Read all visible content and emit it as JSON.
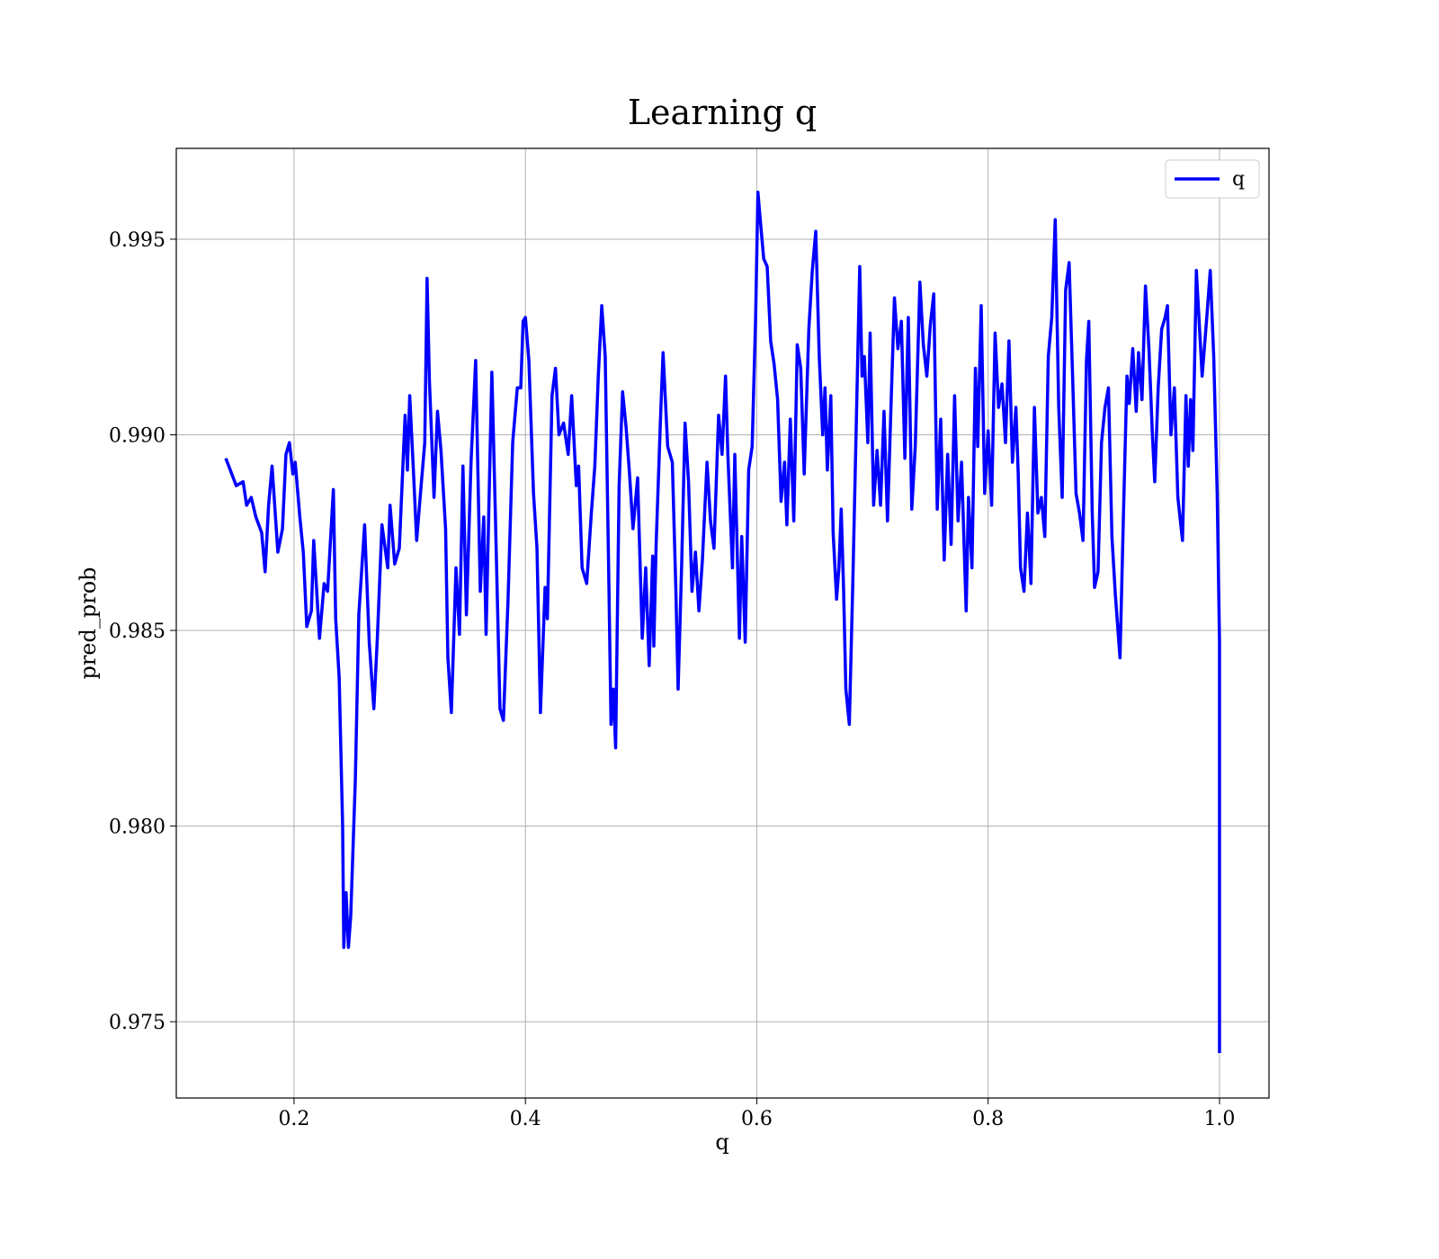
{
  "chart_data": {
    "type": "line",
    "title": "Learning q",
    "x_label": "q",
    "y_label": "pred_prob",
    "xlim": [
      0.0982,
      1.0428
    ],
    "ylim": [
      0.97305,
      0.99732
    ],
    "xticks": [
      0.2,
      0.4,
      0.6,
      0.8,
      {
        "value": 1,
        "label": "1.0"
      }
    ],
    "yticks": [
      0.975,
      {
        "value": 0.98,
        "label": "0.980"
      },
      0.985,
      {
        "value": 0.99,
        "label": "0.990"
      },
      0.995
    ],
    "grid": true,
    "legend": "upper right",
    "x": [
      0.141,
      0.15,
      0.156,
      0.159,
      0.163,
      0.167,
      0.172,
      0.175,
      0.178,
      0.181,
      0.186,
      0.19,
      0.193,
      0.196,
      0.199,
      0.201,
      0.205,
      0.208,
      0.211,
      0.215,
      0.217,
      0.222,
      0.226,
      0.229,
      0.234,
      0.236,
      0.239,
      0.242,
      0.243,
      0.245,
      0.247,
      0.249,
      0.253,
      0.256,
      0.261,
      0.265,
      0.269,
      0.272,
      0.276,
      0.281,
      0.283,
      0.287,
      0.291,
      0.296,
      0.298,
      0.3,
      0.303,
      0.306,
      0.309,
      0.313,
      0.315,
      0.317,
      0.321,
      0.324,
      0.327,
      0.331,
      0.333,
      0.336,
      0.34,
      0.343,
      0.346,
      0.349,
      0.353,
      0.357,
      0.361,
      0.364,
      0.366,
      0.371,
      0.374,
      0.378,
      0.381,
      0.385,
      0.389,
      0.393,
      0.396,
      0.398,
      0.4,
      0.403,
      0.407,
      0.41,
      0.413,
      0.417,
      0.419,
      0.423,
      0.426,
      0.429,
      0.433,
      0.437,
      0.44,
      0.444,
      0.446,
      0.449,
      0.453,
      0.457,
      0.46,
      0.463,
      0.466,
      0.469,
      0.472,
      0.474,
      0.476,
      0.478,
      0.481,
      0.484,
      0.487,
      0.49,
      0.493,
      0.497,
      0.501,
      0.504,
      0.507,
      0.51,
      0.511,
      0.513,
      0.517,
      0.519,
      0.523,
      0.527,
      0.53,
      0.532,
      0.535,
      0.538,
      0.541,
      0.544,
      0.547,
      0.55,
      0.553,
      0.557,
      0.56,
      0.563,
      0.567,
      0.57,
      0.573,
      0.575,
      0.579,
      0.581,
      0.585,
      0.587,
      0.59,
      0.593,
      0.596,
      0.599,
      0.601,
      0.603,
      0.606,
      0.609,
      0.612,
      0.615,
      0.618,
      0.621,
      0.624,
      0.626,
      0.629,
      0.632,
      0.635,
      0.638,
      0.641,
      0.645,
      0.648,
      0.651,
      0.654,
      0.657,
      0.659,
      0.661,
      0.664,
      0.666,
      0.669,
      0.671,
      0.673,
      0.675,
      0.677,
      0.68,
      0.683,
      0.689,
      0.691,
      0.693,
      0.696,
      0.698,
      0.701,
      0.704,
      0.707,
      0.71,
      0.713,
      0.716,
      0.719,
      0.722,
      0.725,
      0.728,
      0.731,
      0.734,
      0.737,
      0.741,
      0.744,
      0.747,
      0.75,
      0.753,
      0.756,
      0.759,
      0.762,
      0.765,
      0.768,
      0.771,
      0.774,
      0.777,
      0.781,
      0.783,
      0.786,
      0.789,
      0.791,
      0.794,
      0.797,
      0.8,
      0.803,
      0.806,
      0.809,
      0.812,
      0.815,
      0.818,
      0.821,
      0.824,
      0.826,
      0.828,
      0.831,
      0.834,
      0.837,
      0.84,
      0.843,
      0.846,
      0.849,
      0.852,
      0.855,
      0.858,
      0.861,
      0.864,
      0.867,
      0.87,
      0.873,
      0.876,
      0.879,
      0.882,
      0.885,
      0.887,
      0.89,
      0.892,
      0.895,
      0.898,
      0.901,
      0.904,
      0.907,
      0.91,
      0.914,
      0.917,
      0.92,
      0.922,
      0.925,
      0.928,
      0.93,
      0.933,
      0.936,
      0.939,
      0.942,
      0.944,
      0.947,
      0.95,
      0.953,
      0.955,
      0.958,
      0.961,
      0.964,
      0.968,
      0.971,
      0.973,
      0.975,
      0.977,
      0.98,
      0.985,
      0.989,
      0.992,
      0.995,
      0.998,
      1.0,
      1.0
    ],
    "series": [
      {
        "name": "q",
        "color": "#0000ff",
        "values": [
          0.9894,
          0.9887,
          0.9888,
          0.9882,
          0.9884,
          0.9879,
          0.9875,
          0.9865,
          0.9882,
          0.9892,
          0.987,
          0.9876,
          0.9895,
          0.9898,
          0.989,
          0.9893,
          0.9879,
          0.987,
          0.9851,
          0.9855,
          0.9873,
          0.9848,
          0.9862,
          0.986,
          0.9886,
          0.9853,
          0.9838,
          0.98,
          0.9769,
          0.9783,
          0.9769,
          0.9777,
          0.9812,
          0.9854,
          0.9877,
          0.9847,
          0.983,
          0.9848,
          0.9877,
          0.9866,
          0.9882,
          0.9867,
          0.9871,
          0.9905,
          0.9891,
          0.991,
          0.9892,
          0.9873,
          0.9884,
          0.9898,
          0.994,
          0.9914,
          0.9884,
          0.9906,
          0.9896,
          0.9876,
          0.9843,
          0.9829,
          0.9866,
          0.9849,
          0.9892,
          0.9854,
          0.9893,
          0.9919,
          0.986,
          0.9879,
          0.9849,
          0.9916,
          0.988,
          0.983,
          0.9827,
          0.9858,
          0.9898,
          0.9912,
          0.9912,
          0.9929,
          0.993,
          0.9919,
          0.9885,
          0.9871,
          0.9829,
          0.9861,
          0.9853,
          0.991,
          0.9917,
          0.99,
          0.9903,
          0.9895,
          0.991,
          0.9887,
          0.9892,
          0.9866,
          0.9862,
          0.988,
          0.9892,
          0.9915,
          0.9933,
          0.992,
          0.9865,
          0.9826,
          0.9835,
          0.982,
          0.9887,
          0.9911,
          0.9902,
          0.989,
          0.9876,
          0.9889,
          0.9848,
          0.9866,
          0.9841,
          0.9869,
          0.9846,
          0.9872,
          0.9906,
          0.9921,
          0.9897,
          0.9893,
          0.9861,
          0.9835,
          0.9866,
          0.9903,
          0.9888,
          0.986,
          0.987,
          0.9855,
          0.9868,
          0.9893,
          0.9878,
          0.9871,
          0.9905,
          0.9895,
          0.9915,
          0.9895,
          0.9866,
          0.9895,
          0.9848,
          0.9874,
          0.9847,
          0.9891,
          0.9897,
          0.993,
          0.9962,
          0.9955,
          0.9945,
          0.9943,
          0.9924,
          0.9918,
          0.9909,
          0.9883,
          0.9893,
          0.9877,
          0.9904,
          0.9878,
          0.9923,
          0.9917,
          0.989,
          0.9927,
          0.9942,
          0.9952,
          0.992,
          0.99,
          0.9912,
          0.9891,
          0.991,
          0.9875,
          0.9858,
          0.9866,
          0.9881,
          0.9861,
          0.9835,
          0.9826,
          0.9862,
          0.9943,
          0.9915,
          0.992,
          0.9898,
          0.9926,
          0.9882,
          0.9896,
          0.9882,
          0.9906,
          0.9878,
          0.9907,
          0.9935,
          0.9922,
          0.9929,
          0.9894,
          0.993,
          0.9881,
          0.9897,
          0.9939,
          0.9923,
          0.9915,
          0.9928,
          0.9936,
          0.9881,
          0.9904,
          0.9868,
          0.9895,
          0.9872,
          0.991,
          0.9878,
          0.9893,
          0.9855,
          0.9884,
          0.9866,
          0.9917,
          0.9897,
          0.9933,
          0.9885,
          0.9901,
          0.9882,
          0.9926,
          0.9907,
          0.9913,
          0.9898,
          0.9924,
          0.9893,
          0.9907,
          0.989,
          0.9866,
          0.986,
          0.988,
          0.9862,
          0.9907,
          0.988,
          0.9884,
          0.9874,
          0.992,
          0.993,
          0.9955,
          0.9907,
          0.9884,
          0.9937,
          0.9944,
          0.9915,
          0.9885,
          0.988,
          0.9873,
          0.9919,
          0.9929,
          0.988,
          0.9861,
          0.9865,
          0.9898,
          0.9907,
          0.9912,
          0.9874,
          0.9859,
          0.9843,
          0.988,
          0.9915,
          0.9908,
          0.9922,
          0.9906,
          0.9921,
          0.9909,
          0.9938,
          0.9922,
          0.99,
          0.9888,
          0.9912,
          0.9927,
          0.993,
          0.9933,
          0.99,
          0.9912,
          0.9884,
          0.9873,
          0.991,
          0.9892,
          0.9909,
          0.9896,
          0.9942,
          0.9915,
          0.993,
          0.9942,
          0.992,
          0.9885,
          0.9847,
          0.9742
        ]
      }
    ]
  }
}
